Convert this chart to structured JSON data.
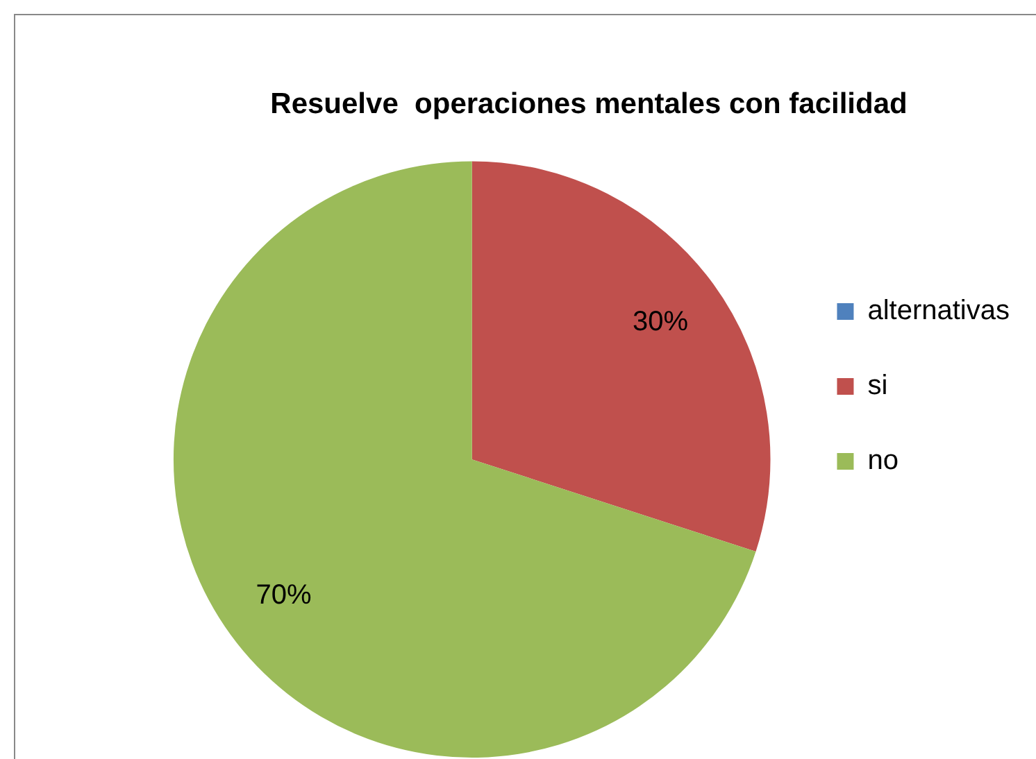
{
  "chart_data": {
    "type": "pie",
    "title": "Resuelve  operaciones mentales con facilidad",
    "categories": [
      "alternativas",
      "si",
      "no"
    ],
    "values": [
      0,
      30,
      70
    ],
    "colors": [
      "#4f81bd",
      "#c0504d",
      "#9bbb59"
    ],
    "value_labels": [
      null,
      "30%",
      "70%"
    ],
    "legend": "right"
  }
}
